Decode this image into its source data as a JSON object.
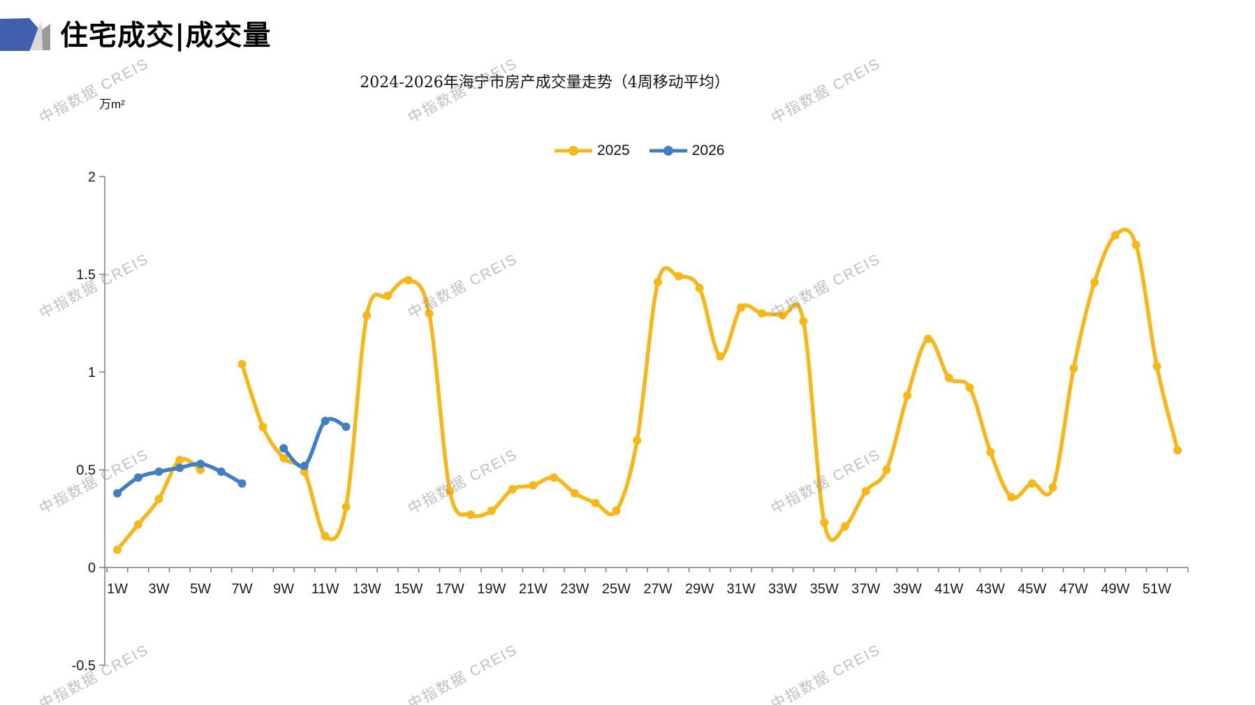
{
  "page": {
    "header_title": "住宅成交|成交量",
    "watermark": "中指数据 CREIS"
  },
  "chart": {
    "title": "2024-2026年海宁市房产成交量走势（4周移动平均）",
    "unit_label": "万m²",
    "legend": [
      {
        "label": "2025",
        "color": "#F7B716"
      },
      {
        "label": "2026",
        "color": "#3E80C3"
      }
    ]
  },
  "chart_data": {
    "type": "line",
    "title": "2024-2026年海宁市房产成交量走势（4周移动平均）",
    "ylabel": "万m²",
    "ylim": [
      -0.5,
      2
    ],
    "y_ticks": [
      2,
      1.5,
      1,
      0.5,
      0,
      -0.5
    ],
    "y_tick_labels": [
      "2",
      "1.5",
      "1",
      "0.5",
      "0",
      "-0.5"
    ],
    "x_range_weeks": [
      1,
      52
    ],
    "x_tick_labels": [
      "1W",
      "3W",
      "5W",
      "7W",
      "9W",
      "11W",
      "13W",
      "15W",
      "17W",
      "19W",
      "21W",
      "23W",
      "25W",
      "27W",
      "29W",
      "31W",
      "33W",
      "35W",
      "37W",
      "39W",
      "41W",
      "43W",
      "45W",
      "47W",
      "49W",
      "51W"
    ],
    "grid": false,
    "legend_position": "top-center",
    "series": [
      {
        "name": "2025",
        "color": "#F7B716",
        "start_week": 1,
        "values": [
          0.09,
          0.22,
          0.35,
          0.55,
          0.5,
          null,
          1.04,
          0.72,
          0.56,
          0.49,
          0.16,
          0.31,
          1.29,
          1.39,
          1.47,
          1.3,
          0.39,
          0.27,
          0.29,
          0.4,
          0.42,
          0.46,
          0.38,
          0.33,
          0.29,
          0.65,
          1.46,
          1.49,
          1.43,
          1.08,
          1.33,
          1.3,
          1.29,
          1.26,
          0.23,
          0.21,
          0.39,
          0.5,
          0.88,
          1.17,
          0.97,
          0.92,
          0.59,
          0.36,
          0.43,
          0.41,
          1.02,
          1.46,
          1.7,
          1.65,
          1.03,
          0.6
        ]
      },
      {
        "name": "2026",
        "color": "#3E80C3",
        "start_week": 1,
        "values": [
          0.38,
          0.46,
          0.49,
          0.51,
          0.53,
          0.49,
          0.43,
          null,
          0.61,
          0.52,
          0.75,
          0.72
        ]
      }
    ]
  }
}
